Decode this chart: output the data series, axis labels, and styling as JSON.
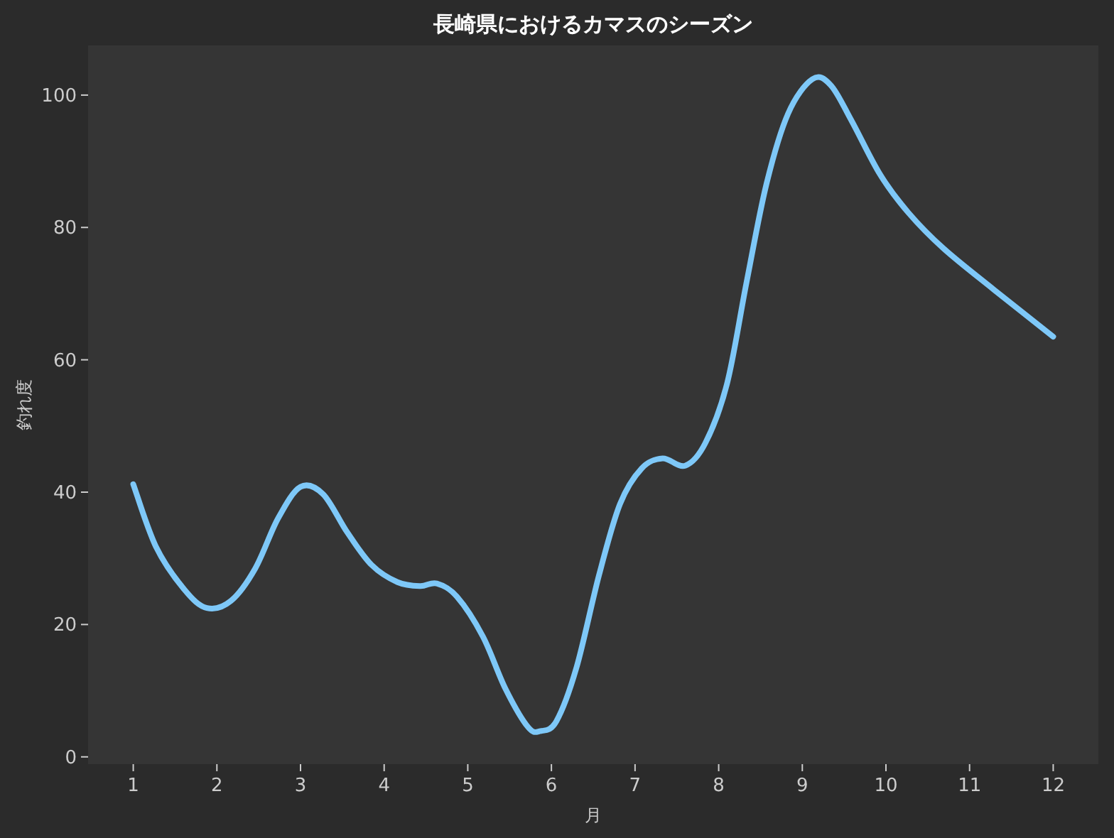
{
  "chart_data": {
    "type": "line",
    "title": "長崎県におけるカマスのシーズン",
    "xlabel": "月",
    "ylabel": "釣れ度",
    "xlim": [
      0.46,
      12.54
    ],
    "ylim": [
      -1.1,
      107.5
    ],
    "xticks": [
      1,
      2,
      3,
      4,
      5,
      6,
      7,
      8,
      9,
      10,
      11,
      12
    ],
    "yticks": [
      0,
      20,
      40,
      60,
      80,
      100
    ],
    "grid": false,
    "marker": "none",
    "line_style": "solid",
    "series": [
      {
        "color": "#7ec8f8",
        "x": [
          1,
          1.27,
          1.61,
          1.88,
          2.17,
          2.46,
          2.73,
          3.0,
          3.27,
          3.56,
          3.85,
          4.16,
          4.43,
          4.63,
          4.87,
          5.18,
          5.45,
          5.72,
          5.87,
          6.06,
          6.3,
          6.57,
          6.82,
          7.08,
          7.33,
          7.6,
          7.84,
          8.1,
          8.33,
          8.57,
          8.83,
          9.12,
          9.34,
          9.59,
          9.93,
          10.27,
          10.69,
          11.29,
          12
        ],
        "values": [
          41.2,
          31.8,
          25.3,
          22.5,
          23.6,
          28.5,
          36,
          40.8,
          39.7,
          33.9,
          29,
          26.4,
          25.8,
          26.2,
          24.2,
          18.2,
          10.3,
          4.5,
          3.9,
          5.4,
          13.5,
          27.5,
          38.2,
          43.6,
          45.1,
          44,
          47.4,
          56.4,
          71.5,
          86.5,
          97.2,
          102.4,
          101.5,
          96.1,
          88,
          82.2,
          76.8,
          70.6,
          63.5
        ]
      }
    ]
  }
}
